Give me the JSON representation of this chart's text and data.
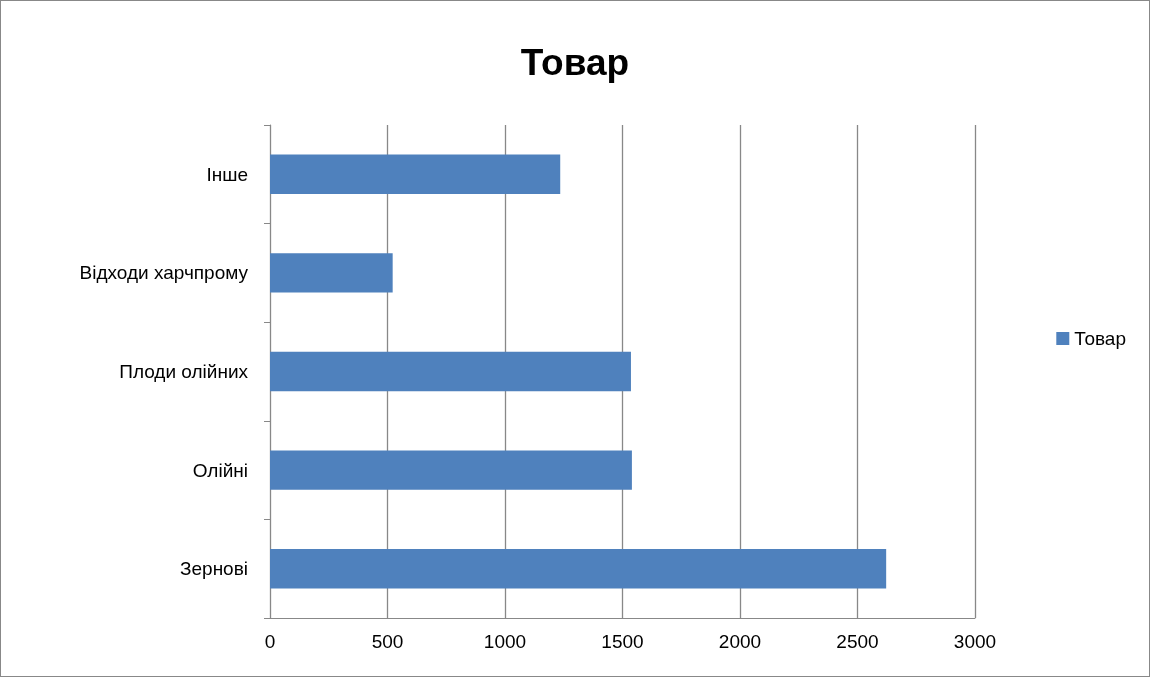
{
  "chart_data": {
    "type": "bar",
    "orientation": "horizontal",
    "title": "Товар",
    "categories": [
      "Інше",
      "Відходи харчпрому",
      "Плоди олійних",
      "Олійні",
      "Зернові"
    ],
    "series": [
      {
        "name": "Товар",
        "color": "#4f81bd",
        "values": [
          1235,
          522,
          1536,
          1540,
          2622
        ]
      }
    ],
    "xlim": [
      0,
      3000
    ],
    "xticks": [
      0,
      500,
      1000,
      1500,
      2000,
      2500,
      3000
    ],
    "grid": "x",
    "legend": "right"
  }
}
